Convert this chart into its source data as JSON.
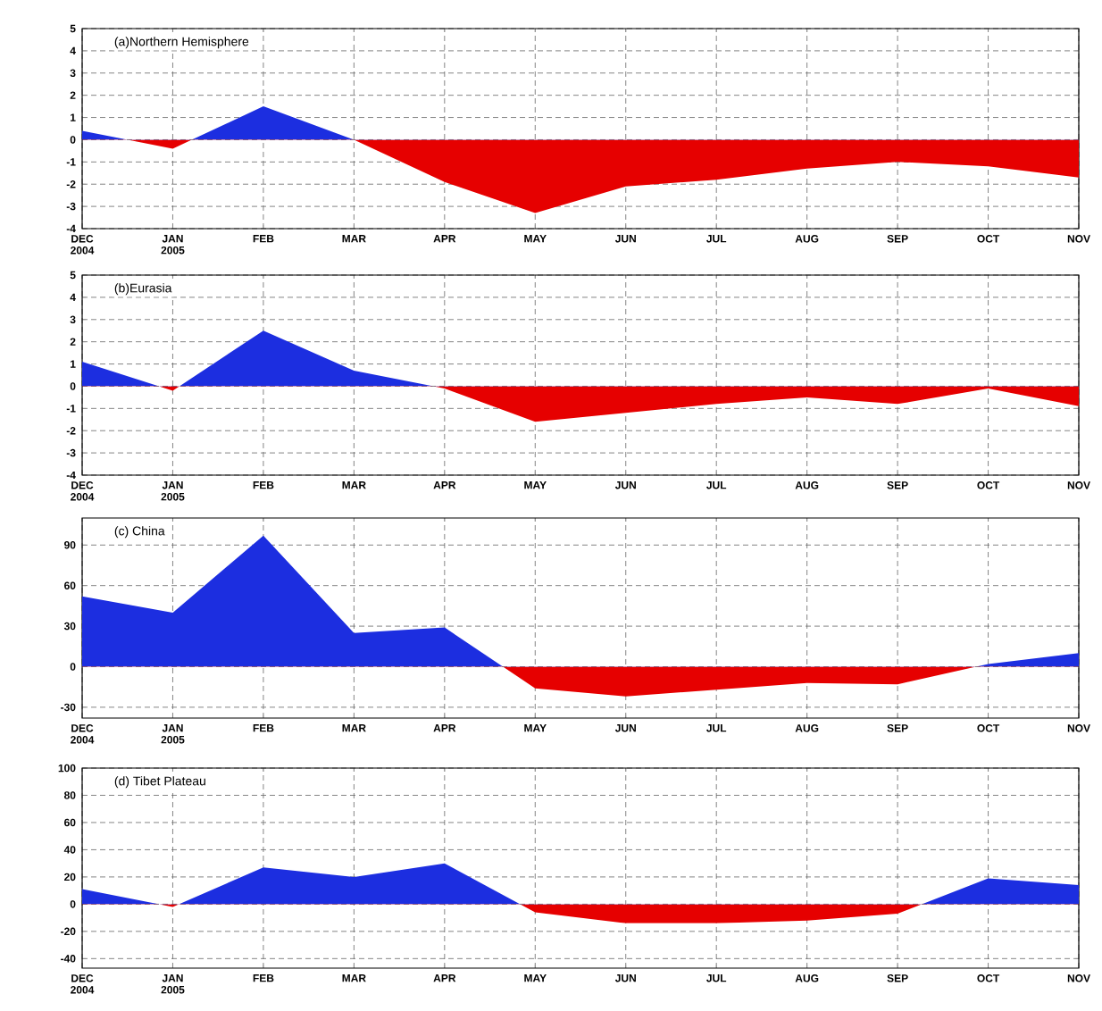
{
  "chart_data": [
    {
      "type": "area",
      "title": "(a)Northern Hemisphere",
      "categories": [
        "DEC 2004",
        "JAN 2005",
        "FEB",
        "MAR",
        "APR",
        "MAY",
        "JUN",
        "JUL",
        "AUG",
        "SEP",
        "OCT",
        "NOV"
      ],
      "series": [
        {
          "values": [
            0.4,
            -0.4,
            1.5,
            0,
            -1.9,
            -3.3,
            -2.1,
            -1.8,
            -1.3,
            -1.0,
            -1.2,
            -1.7
          ],
          "colors": [
            "#1c2ee0",
            "#e60000",
            "#1c2ee0",
            "#1c2ee0",
            "#e60000",
            "#e60000",
            "#e60000",
            "#e60000",
            "#e60000",
            "#e60000",
            "#e60000",
            "#e60000"
          ]
        }
      ],
      "ylim": [
        -4,
        5
      ],
      "yticks": [
        -4,
        -3,
        -2,
        -1,
        0,
        1,
        2,
        3,
        4,
        5
      ],
      "grid": true
    },
    {
      "type": "area",
      "title": "(b)Eurasia",
      "categories": [
        "DEC 2004",
        "JAN 2005",
        "FEB",
        "MAR",
        "APR",
        "MAY",
        "JUN",
        "JUL",
        "AUG",
        "SEP",
        "OCT",
        "NOV"
      ],
      "series": [
        {
          "values": [
            1.1,
            -0.2,
            2.5,
            0.7,
            -0.1,
            -1.6,
            -1.2,
            -0.8,
            -0.5,
            -0.8,
            -0.1,
            -0.9
          ],
          "colors": [
            "#1c2ee0",
            "#e60000",
            "#1c2ee0",
            "#1c2ee0",
            "#e60000",
            "#e60000",
            "#e60000",
            "#e60000",
            "#e60000",
            "#e60000",
            "#e60000",
            "#e60000"
          ]
        }
      ],
      "ylim": [
        -4,
        5
      ],
      "yticks": [
        -4,
        -3,
        -2,
        -1,
        0,
        1,
        2,
        3,
        4,
        5
      ],
      "grid": true
    },
    {
      "type": "area",
      "title": "(c) China",
      "categories": [
        "DEC 2004",
        "JAN 2005",
        "FEB",
        "MAR",
        "APR",
        "MAY",
        "JUN",
        "JUL",
        "AUG",
        "SEP",
        "OCT",
        "NOV"
      ],
      "series": [
        {
          "values": [
            52,
            40,
            97,
            25,
            29,
            -16,
            -22,
            -17,
            -12,
            -13,
            2,
            10
          ],
          "colors": [
            "#1c2ee0",
            "#1c2ee0",
            "#1c2ee0",
            "#1c2ee0",
            "#1c2ee0",
            "#e60000",
            "#e60000",
            "#e60000",
            "#e60000",
            "#e60000",
            "#1c2ee0",
            "#1c2ee0"
          ]
        }
      ],
      "ylim": [
        -38,
        110
      ],
      "yticks": [
        -30,
        0,
        30,
        60,
        90
      ],
      "grid": true
    },
    {
      "type": "area",
      "title": "(d) Tibet Plateau",
      "categories": [
        "DEC 2004",
        "JAN 2005",
        "FEB",
        "MAR",
        "APR",
        "MAY",
        "JUN",
        "JUL",
        "AUG",
        "SEP",
        "OCT",
        "NOV"
      ],
      "series": [
        {
          "values": [
            11,
            -2,
            27,
            20,
            30,
            -6,
            -14,
            -14,
            -12,
            -7,
            19,
            14
          ],
          "colors": [
            "#1c2ee0",
            "#e60000",
            "#1c2ee0",
            "#1c2ee0",
            "#1c2ee0",
            "#e60000",
            "#e60000",
            "#e60000",
            "#e60000",
            "#e60000",
            "#1c2ee0",
            "#1c2ee0"
          ]
        }
      ],
      "ylim": [
        -47,
        100
      ],
      "yticks": [
        -40,
        -20,
        0,
        20,
        40,
        60,
        80,
        100
      ],
      "grid": true
    }
  ]
}
